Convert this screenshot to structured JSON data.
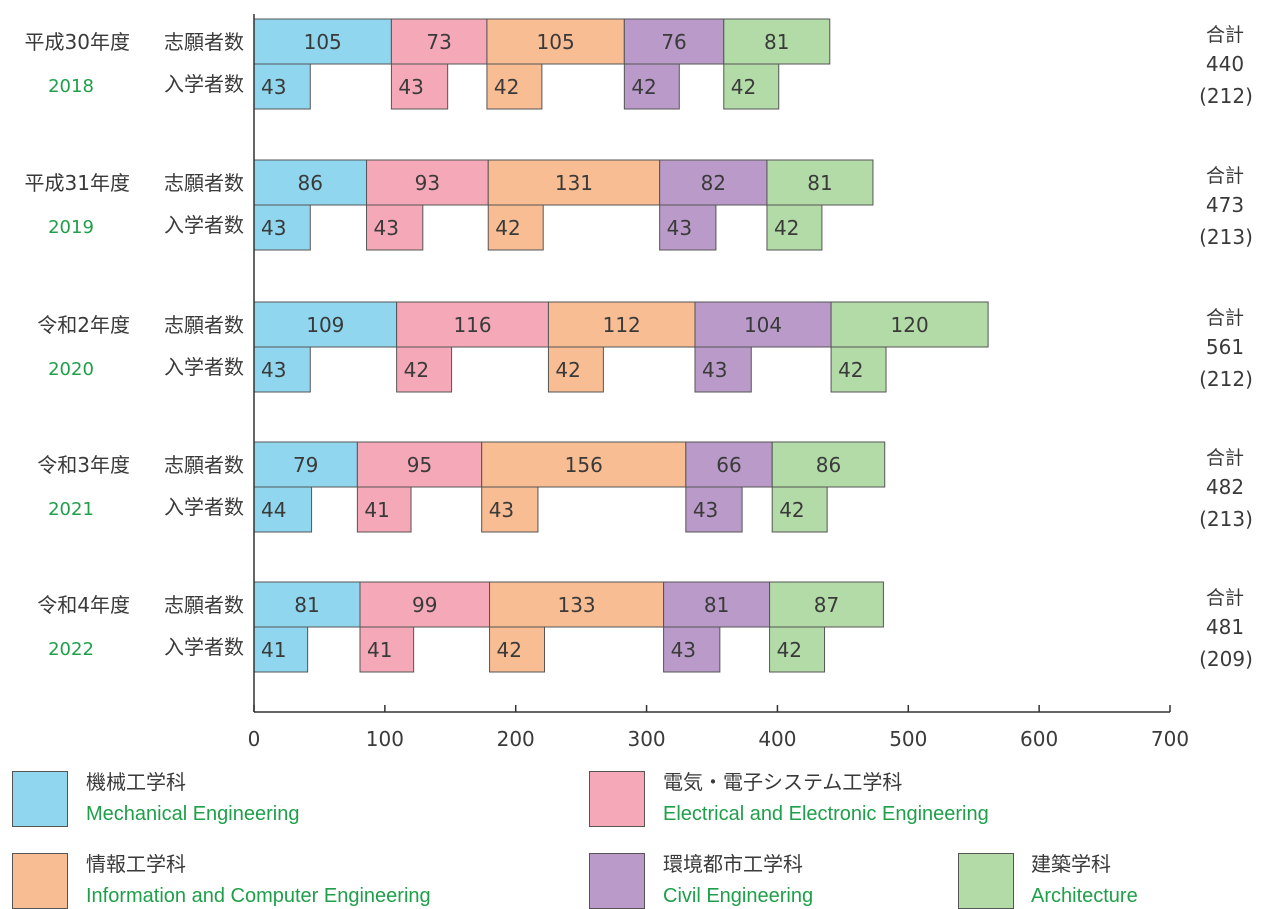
{
  "chart_data": {
    "type": "bar",
    "orientation": "horizontal",
    "stacked": true,
    "xlim": [
      0,
      700
    ],
    "x_ticks": [
      0,
      100,
      200,
      300,
      400,
      500,
      600,
      700
    ],
    "row_labels": {
      "applicants": "志願者数",
      "enrolled": "入学者数"
    },
    "total_label": "合計",
    "years": [
      {
        "era": "平成30年度",
        "year": "2018",
        "applicants": [
          105,
          73,
          105,
          76,
          81
        ],
        "enrolled": [
          43,
          43,
          42,
          42,
          42
        ],
        "total": "440",
        "enrolled_total": "(212)"
      },
      {
        "era": "平成31年度",
        "year": "2019",
        "applicants": [
          86,
          93,
          131,
          82,
          81
        ],
        "enrolled": [
          43,
          43,
          42,
          43,
          42
        ],
        "total": "473",
        "enrolled_total": "(213)"
      },
      {
        "era": "令和2年度",
        "year": "2020",
        "applicants": [
          109,
          116,
          112,
          104,
          120
        ],
        "enrolled": [
          43,
          42,
          42,
          43,
          42
        ],
        "total": "561",
        "enrolled_total": "(212)"
      },
      {
        "era": "令和3年度",
        "year": "2021",
        "applicants": [
          79,
          95,
          156,
          66,
          86
        ],
        "enrolled": [
          44,
          41,
          43,
          43,
          42
        ],
        "total": "482",
        "enrolled_total": "(213)"
      },
      {
        "era": "令和4年度",
        "year": "2022",
        "applicants": [
          81,
          99,
          133,
          81,
          87
        ],
        "enrolled": [
          41,
          41,
          42,
          43,
          42
        ],
        "total": "481",
        "enrolled_total": "(209)"
      }
    ],
    "series": [
      {
        "jp": "機械工学科",
        "en": "Mechanical Engineering",
        "color": "#8fd6ee"
      },
      {
        "jp": "電気・電子システム工学科",
        "en": "Electrical and Electronic Engineering",
        "color": "#f5a9b8"
      },
      {
        "jp": "情報工学科",
        "en": "Information and Computer Engineering",
        "color": "#f8bd93"
      },
      {
        "jp": "環境都市工学科",
        "en": "Civil Engineering",
        "color": "#b99ac9"
      },
      {
        "jp": "建築学科",
        "en": "Architecture",
        "color": "#b3dba8"
      }
    ],
    "year_color": "#1f9f4a"
  }
}
